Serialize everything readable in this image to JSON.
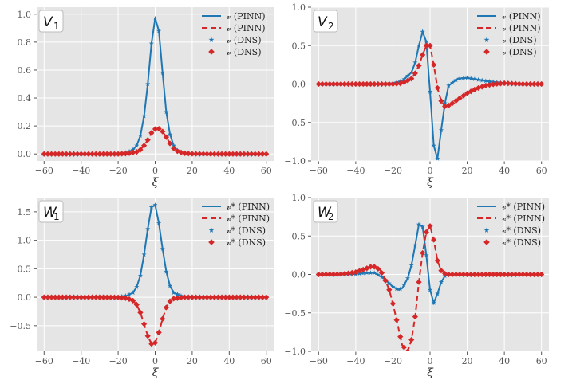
{
  "colors": {
    "blue": "#1f77b4",
    "red": "#d62728",
    "plot_bg": "#e5e5e5",
    "grid": "#ffffff"
  },
  "chart_data": [
    {
      "type": "line",
      "title": "V",
      "title_sub": "1",
      "xlabel": "ξ",
      "ylabel": "",
      "xlim": [
        -64,
        64
      ],
      "ylim": [
        -0.05,
        1.05
      ],
      "xticks": [
        -60,
        -40,
        -20,
        0,
        20,
        40,
        60
      ],
      "xtick_labels": [
        "−60",
        "−40",
        "−20",
        "0",
        "20",
        "40",
        "60"
      ],
      "yticks": [
        0.0,
        0.2,
        0.4,
        0.6,
        0.8,
        1.0
      ],
      "ytick_labels": [
        "0.0",
        "0.2",
        "0.4",
        "0.6",
        "0.8",
        "1.0"
      ],
      "legend_position": "top-right",
      "legend": [
        "𝓋 (PINN)",
        "𝓋 (PINN)",
        "𝓋 (DNS)",
        "𝓋 (DNS)"
      ],
      "series": [
        {
          "name": "𝓋 (PINN)",
          "color": "blue",
          "style": "solid",
          "x": [
            -60,
            -50,
            -40,
            -30,
            -20,
            -15,
            -12,
            -10,
            -8,
            -6,
            -4,
            -2,
            0,
            2,
            4,
            6,
            8,
            10,
            12,
            15,
            20,
            30,
            40,
            50,
            60
          ],
          "y": [
            0,
            0,
            0,
            0,
            0.002,
            0.012,
            0.03,
            0.06,
            0.13,
            0.27,
            0.5,
            0.79,
            0.97,
            0.88,
            0.58,
            0.3,
            0.14,
            0.06,
            0.025,
            0.008,
            0.002,
            0,
            0,
            0,
            0
          ]
        },
        {
          "name": "𝓋 (PINN)",
          "color": "red",
          "style": "dashed",
          "x": [
            -60,
            -50,
            -40,
            -30,
            -20,
            -15,
            -10,
            -8,
            -6,
            -4,
            -2,
            0,
            2,
            4,
            6,
            8,
            10,
            12,
            15,
            20,
            30,
            40,
            50,
            60
          ],
          "y": [
            0,
            0,
            0,
            0,
            0,
            0.003,
            0.015,
            0.03,
            0.06,
            0.1,
            0.15,
            0.178,
            0.18,
            0.16,
            0.12,
            0.075,
            0.04,
            0.02,
            0.006,
            0.001,
            0,
            0,
            0,
            0
          ]
        },
        {
          "name": "𝓋 (DNS)",
          "color": "blue",
          "style": "marker-star",
          "x": [
            -60,
            -50,
            -40,
            -30,
            -20,
            -15,
            -12,
            -10,
            -8,
            -6,
            -4,
            -2,
            0,
            2,
            4,
            6,
            8,
            10,
            12,
            15,
            20,
            30,
            40,
            50,
            60
          ],
          "y": [
            0,
            0,
            0,
            0,
            0.002,
            0.012,
            0.03,
            0.06,
            0.13,
            0.27,
            0.5,
            0.79,
            0.97,
            0.88,
            0.58,
            0.3,
            0.14,
            0.06,
            0.025,
            0.008,
            0.002,
            0,
            0,
            0,
            0
          ]
        },
        {
          "name": "𝓋 (DNS)",
          "color": "red",
          "style": "marker-diamond",
          "x": [
            -60,
            -50,
            -40,
            -30,
            -20,
            -15,
            -10,
            -8,
            -6,
            -4,
            -2,
            0,
            2,
            4,
            6,
            8,
            10,
            12,
            15,
            20,
            30,
            40,
            50,
            60
          ],
          "y": [
            0,
            0,
            0,
            0,
            0,
            0.003,
            0.015,
            0.03,
            0.06,
            0.1,
            0.15,
            0.178,
            0.18,
            0.16,
            0.12,
            0.075,
            0.04,
            0.02,
            0.006,
            0.001,
            0,
            0,
            0,
            0
          ]
        }
      ]
    },
    {
      "type": "line",
      "title": "V",
      "title_sub": "2",
      "xlabel": "ξ",
      "ylabel": "",
      "xlim": [
        -64,
        64
      ],
      "ylim": [
        -1.0,
        1.0
      ],
      "xticks": [
        -60,
        -40,
        -20,
        0,
        20,
        40,
        60
      ],
      "xtick_labels": [
        "−60",
        "−40",
        "−20",
        "0",
        "20",
        "40",
        "60"
      ],
      "yticks": [
        -1.0,
        -0.5,
        0.0,
        0.5,
        1.0
      ],
      "ytick_labels": [
        "−1.0",
        "−0.5",
        "0.0",
        "0.5",
        "1.0"
      ],
      "legend_position": "top-right",
      "legend": [
        "𝓋 (PINN)",
        "𝓋 (PINN)",
        "𝓋 (DNS)",
        "𝓋 (DNS)"
      ],
      "series": [
        {
          "name": "𝓋 (PINN)",
          "color": "blue",
          "style": "solid",
          "x": [
            -60,
            -40,
            -30,
            -20,
            -15,
            -10,
            -8,
            -6,
            -4,
            -2,
            0,
            2,
            4,
            6,
            8,
            10,
            15,
            20,
            25,
            30,
            40,
            50,
            60
          ],
          "y": [
            0,
            0,
            0,
            0.01,
            0.04,
            0.15,
            0.28,
            0.5,
            0.68,
            0.55,
            -0.1,
            -0.8,
            -0.97,
            -0.6,
            -0.25,
            -0.02,
            0.07,
            0.08,
            0.06,
            0.04,
            0.01,
            0,
            0
          ]
        },
        {
          "name": "𝓋 (PINN)",
          "color": "red",
          "style": "dashed",
          "x": [
            -60,
            -40,
            -30,
            -20,
            -15,
            -10,
            -8,
            -6,
            -4,
            -2,
            0,
            2,
            4,
            6,
            8,
            10,
            12,
            15,
            20,
            25,
            30,
            35,
            40,
            50,
            60
          ],
          "y": [
            0,
            0,
            0,
            0,
            0.01,
            0.07,
            0.14,
            0.24,
            0.38,
            0.5,
            0.5,
            0.25,
            -0.05,
            -0.22,
            -0.29,
            -0.28,
            -0.25,
            -0.2,
            -0.12,
            -0.06,
            -0.02,
            0,
            0.01,
            0,
            0
          ]
        },
        {
          "name": "𝓋 (DNS)",
          "color": "blue",
          "style": "marker-star",
          "x": [
            -60,
            -40,
            -30,
            -20,
            -15,
            -10,
            -8,
            -6,
            -4,
            -2,
            0,
            2,
            4,
            6,
            8,
            10,
            15,
            20,
            25,
            30,
            40,
            50,
            60
          ],
          "y": [
            0,
            0,
            0,
            0.01,
            0.04,
            0.15,
            0.28,
            0.5,
            0.68,
            0.55,
            -0.1,
            -0.8,
            -0.97,
            -0.6,
            -0.25,
            -0.02,
            0.07,
            0.08,
            0.06,
            0.04,
            0.01,
            0,
            0
          ]
        },
        {
          "name": "𝓋 (DNS)",
          "color": "red",
          "style": "marker-diamond",
          "x": [
            -60,
            -40,
            -30,
            -20,
            -15,
            -10,
            -8,
            -6,
            -4,
            -2,
            0,
            2,
            4,
            6,
            8,
            10,
            12,
            15,
            20,
            25,
            30,
            35,
            40,
            50,
            60
          ],
          "y": [
            0,
            0,
            0,
            0,
            0.01,
            0.07,
            0.14,
            0.24,
            0.38,
            0.5,
            0.5,
            0.25,
            -0.05,
            -0.22,
            -0.29,
            -0.28,
            -0.25,
            -0.2,
            -0.12,
            -0.06,
            -0.02,
            0,
            0.01,
            0,
            0
          ]
        }
      ]
    },
    {
      "type": "line",
      "title": "W",
      "title_sub": "1",
      "xlabel": "ξ",
      "ylabel": "",
      "xlim": [
        -64,
        64
      ],
      "ylim": [
        -0.95,
        1.75
      ],
      "xticks": [
        -60,
        -40,
        -20,
        0,
        20,
        40,
        60
      ],
      "xtick_labels": [
        "−60",
        "−40",
        "−20",
        "0",
        "20",
        "40",
        "60"
      ],
      "yticks": [
        -0.5,
        0.0,
        0.5,
        1.0,
        1.5
      ],
      "ytick_labels": [
        "−0.5",
        "0.0",
        "0.5",
        "1.0",
        "1.5"
      ],
      "legend_position": "top-right",
      "legend": [
        "𝓋* (PINN)",
        "𝓋* (PINN)",
        "𝓋* (DNS)",
        "𝓋* (DNS)"
      ],
      "series": [
        {
          "name": "𝓋* (PINN)",
          "color": "blue",
          "style": "solid",
          "x": [
            -60,
            -40,
            -30,
            -20,
            -15,
            -12,
            -10,
            -8,
            -6,
            -4,
            -2,
            0,
            2,
            4,
            6,
            8,
            10,
            15,
            20,
            30,
            40,
            60
          ],
          "y": [
            0,
            0,
            0,
            0.005,
            0.03,
            0.08,
            0.18,
            0.38,
            0.75,
            1.2,
            1.58,
            1.62,
            1.3,
            0.85,
            0.45,
            0.2,
            0.08,
            0.01,
            0,
            0,
            0,
            0
          ]
        },
        {
          "name": "𝓋* (PINN)",
          "color": "red",
          "style": "dashed",
          "x": [
            -60,
            -40,
            -30,
            -20,
            -15,
            -12,
            -10,
            -8,
            -6,
            -4,
            -2,
            0,
            2,
            4,
            6,
            8,
            10,
            15,
            20,
            30,
            40,
            60
          ],
          "y": [
            0,
            0,
            0,
            -0.003,
            -0.02,
            -0.06,
            -0.13,
            -0.27,
            -0.47,
            -0.68,
            -0.82,
            -0.8,
            -0.62,
            -0.38,
            -0.18,
            -0.07,
            -0.025,
            -0.002,
            0,
            0,
            0,
            0
          ]
        },
        {
          "name": "𝓋* (DNS)",
          "color": "blue",
          "style": "marker-star",
          "x": [
            -60,
            -40,
            -30,
            -20,
            -15,
            -12,
            -10,
            -8,
            -6,
            -4,
            -2,
            0,
            2,
            4,
            6,
            8,
            10,
            15,
            20,
            30,
            40,
            60
          ],
          "y": [
            0,
            0,
            0,
            0.005,
            0.03,
            0.08,
            0.18,
            0.38,
            0.75,
            1.2,
            1.58,
            1.62,
            1.3,
            0.85,
            0.45,
            0.2,
            0.08,
            0.01,
            0,
            0,
            0,
            0
          ]
        },
        {
          "name": "𝓋* (DNS)",
          "color": "red",
          "style": "marker-diamond",
          "x": [
            -60,
            -40,
            -30,
            -20,
            -15,
            -12,
            -10,
            -8,
            -6,
            -4,
            -2,
            0,
            2,
            4,
            6,
            8,
            10,
            15,
            20,
            30,
            40,
            60
          ],
          "y": [
            0,
            0,
            0,
            -0.003,
            -0.02,
            -0.06,
            -0.13,
            -0.27,
            -0.47,
            -0.68,
            -0.82,
            -0.8,
            -0.62,
            -0.38,
            -0.18,
            -0.07,
            -0.025,
            -0.002,
            0,
            0,
            0,
            0
          ]
        }
      ]
    },
    {
      "type": "line",
      "title": "W",
      "title_sub": "2",
      "xlabel": "ξ",
      "ylabel": "",
      "xlim": [
        -64,
        64
      ],
      "ylim": [
        -1.0,
        1.0
      ],
      "xticks": [
        -60,
        -40,
        -20,
        0,
        20,
        40,
        60
      ],
      "xtick_labels": [
        "−60",
        "−40",
        "−20",
        "0",
        "20",
        "40",
        "60"
      ],
      "yticks": [
        -1.0,
        -0.5,
        0.0,
        0.5,
        1.0
      ],
      "ytick_labels": [
        "−1.0",
        "−0.5",
        "0.0",
        "0.5",
        "1.0"
      ],
      "legend_position": "top-right",
      "legend": [
        "𝓋* (PINN)",
        "𝓋* (PINN)",
        "𝓋* (DNS)",
        "𝓋* (DNS)"
      ],
      "series": [
        {
          "name": "𝓋* (PINN)",
          "color": "blue",
          "style": "solid",
          "x": [
            -60,
            -50,
            -40,
            -35,
            -30,
            -25,
            -20,
            -17,
            -15,
            -12,
            -10,
            -8,
            -6,
            -4,
            -2,
            0,
            2,
            4,
            6,
            8,
            10,
            15,
            20,
            30,
            40,
            60
          ],
          "y": [
            0,
            -0.003,
            0.005,
            0.02,
            0.02,
            -0.05,
            -0.16,
            -0.2,
            -0.18,
            -0.05,
            0.12,
            0.38,
            0.65,
            0.62,
            0.25,
            -0.2,
            -0.37,
            -0.25,
            -0.1,
            -0.02,
            0,
            0,
            0,
            0,
            0,
            0
          ]
        },
        {
          "name": "𝓋* (PINN)",
          "color": "red",
          "style": "dashed",
          "x": [
            -60,
            -50,
            -45,
            -40,
            -35,
            -32,
            -30,
            -27,
            -25,
            -22,
            -20,
            -17,
            -15,
            -12,
            -10,
            -8,
            -6,
            -4,
            -2,
            0,
            2,
            4,
            6,
            8,
            10,
            15,
            20,
            30,
            40,
            60
          ],
          "y": [
            0,
            0.002,
            0.01,
            0.03,
            0.07,
            0.1,
            0.1,
            0.06,
            -0.02,
            -0.2,
            -0.38,
            -0.7,
            -0.92,
            -1.0,
            -0.85,
            -0.55,
            -0.1,
            0.28,
            0.55,
            0.63,
            0.45,
            0.18,
            0.05,
            0.01,
            0,
            0,
            0,
            0,
            0,
            0
          ]
        },
        {
          "name": "𝓋* (DNS)",
          "color": "blue",
          "style": "marker-star",
          "x": [
            -60,
            -50,
            -40,
            -35,
            -30,
            -25,
            -20,
            -17,
            -15,
            -12,
            -10,
            -8,
            -6,
            -4,
            -2,
            0,
            2,
            4,
            6,
            8,
            10,
            15,
            20,
            30,
            40,
            60
          ],
          "y": [
            0,
            -0.003,
            0.005,
            0.02,
            0.02,
            -0.05,
            -0.16,
            -0.2,
            -0.18,
            -0.05,
            0.12,
            0.38,
            0.65,
            0.62,
            0.25,
            -0.2,
            -0.37,
            -0.25,
            -0.1,
            -0.02,
            0,
            0,
            0,
            0,
            0,
            0
          ]
        },
        {
          "name": "𝓋* (DNS)",
          "color": "red",
          "style": "marker-diamond",
          "x": [
            -60,
            -50,
            -45,
            -40,
            -35,
            -32,
            -30,
            -27,
            -25,
            -22,
            -20,
            -17,
            -15,
            -12,
            -10,
            -8,
            -6,
            -4,
            -2,
            0,
            2,
            4,
            6,
            8,
            10,
            15,
            20,
            30,
            40,
            60
          ],
          "y": [
            0,
            0.002,
            0.01,
            0.03,
            0.07,
            0.1,
            0.1,
            0.06,
            -0.02,
            -0.2,
            -0.38,
            -0.7,
            -0.92,
            -1.0,
            -0.85,
            -0.55,
            -0.1,
            0.28,
            0.55,
            0.63,
            0.45,
            0.18,
            0.05,
            0.01,
            0,
            0,
            0,
            0,
            0,
            0
          ]
        }
      ]
    }
  ]
}
